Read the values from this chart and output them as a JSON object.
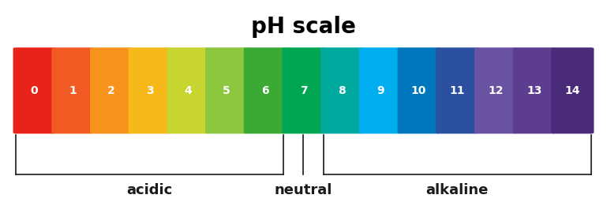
{
  "title": "pH scale",
  "ph_values": [
    0,
    1,
    2,
    3,
    4,
    5,
    6,
    7,
    8,
    9,
    10,
    11,
    12,
    13,
    14
  ],
  "colors": [
    "#e8231a",
    "#f15a22",
    "#f7931d",
    "#f7b81a",
    "#c8d42f",
    "#8dc63f",
    "#3aaa35",
    "#00a651",
    "#00a99d",
    "#00aeef",
    "#0076bc",
    "#2b50a0",
    "#6a52a3",
    "#5c3d8f",
    "#4a2b7a"
  ],
  "label_acidic": "acidic",
  "label_neutral": "neutral",
  "label_alkaline": "alkaline",
  "text_color": "#ffffff",
  "title_color": "#000000",
  "bracket_color": "#1a1a1a",
  "title_fontsize": 20,
  "label_fontsize": 13,
  "num_fontsize": 10,
  "fig_width": 7.69,
  "fig_height": 2.8
}
